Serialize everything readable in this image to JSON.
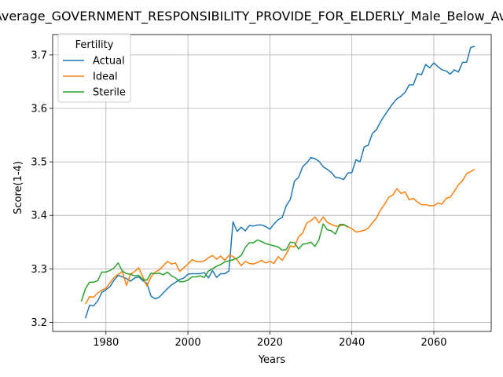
{
  "chart_data": {
    "type": "line",
    "title": "Average_GOVERNMENT_RESPONSIBILITY_PROVIDE_FOR_ELDERLY_Male_Below_Av",
    "xlabel": "Years",
    "ylabel": "Score(1-4)",
    "xlim": [
      1967,
      2074
    ],
    "ylim": [
      3.183,
      3.738
    ],
    "xticks": [
      1980,
      2000,
      2020,
      2040,
      2060
    ],
    "yticks": [
      3.2,
      3.3,
      3.4,
      3.5,
      3.6,
      3.7
    ],
    "grid": true,
    "legend": {
      "title": "Fertility",
      "placement": "top-left"
    },
    "series": [
      {
        "name": "Actual",
        "color": "#1f77b4",
        "x": [
          1975,
          1976,
          1977,
          1978,
          1979,
          1980,
          1981,
          1982,
          1983,
          1984,
          1985,
          1986,
          1987,
          1988,
          1989,
          1990,
          1991,
          1992,
          1993,
          1994,
          1995,
          1996,
          1997,
          1998,
          1999,
          2000,
          2001,
          2002,
          2003,
          2004,
          2005,
          2006,
          2007,
          2008,
          2009,
          2010,
          2011,
          2012,
          2013,
          2014,
          2015,
          2016,
          2017,
          2018,
          2019,
          2020,
          2021,
          2022,
          2023,
          2024,
          2025,
          2026,
          2027,
          2028,
          2029,
          2030,
          2031,
          2032,
          2033,
          2034,
          2035,
          2036,
          2037,
          2038,
          2039,
          2040,
          2041,
          2042,
          2043,
          2044,
          2045,
          2046,
          2047,
          2048,
          2049,
          2050,
          2051,
          2052,
          2053,
          2054,
          2055,
          2056,
          2057,
          2058,
          2059,
          2060,
          2061,
          2062,
          2063,
          2064,
          2065,
          2066,
          2067,
          2068,
          2069,
          2070
        ],
        "values": [
          3.208,
          3.232,
          3.231,
          3.24,
          3.256,
          3.261,
          3.267,
          3.279,
          3.288,
          3.285,
          3.282,
          3.277,
          3.283,
          3.285,
          3.278,
          3.273,
          3.249,
          3.244,
          3.247,
          3.255,
          3.263,
          3.27,
          3.275,
          3.28,
          3.283,
          3.29,
          3.291,
          3.291,
          3.291,
          3.293,
          3.283,
          3.297,
          3.284,
          3.291,
          3.291,
          3.296,
          3.388,
          3.37,
          3.378,
          3.371,
          3.381,
          3.38,
          3.382,
          3.382,
          3.379,
          3.374,
          3.384,
          3.392,
          3.396,
          3.418,
          3.43,
          3.464,
          3.471,
          3.491,
          3.498,
          3.508,
          3.506,
          3.501,
          3.491,
          3.486,
          3.48,
          3.471,
          3.47,
          3.467,
          3.479,
          3.48,
          3.504,
          3.5,
          3.528,
          3.531,
          3.553,
          3.56,
          3.575,
          3.587,
          3.598,
          3.609,
          3.618,
          3.623,
          3.63,
          3.644,
          3.644,
          3.665,
          3.663,
          3.682,
          3.676,
          3.685,
          3.678,
          3.672,
          3.67,
          3.664,
          3.672,
          3.668,
          3.686,
          3.686,
          3.714,
          3.716
        ]
      },
      {
        "name": "Ideal",
        "color": "#ff7f0e",
        "x": [
          1975,
          1976,
          1977,
          1978,
          1979,
          1980,
          1981,
          1982,
          1983,
          1984,
          1985,
          1986,
          1987,
          1988,
          1989,
          1990,
          1991,
          1992,
          1993,
          1994,
          1995,
          1996,
          1997,
          1998,
          1999,
          2000,
          2001,
          2002,
          2003,
          2004,
          2005,
          2006,
          2007,
          2008,
          2009,
          2010,
          2011,
          2012,
          2013,
          2014,
          2015,
          2016,
          2017,
          2018,
          2019,
          2020,
          2021,
          2022,
          2023,
          2024,
          2025,
          2026,
          2027,
          2028,
          2029,
          2030,
          2031,
          2032,
          2033,
          2034,
          2035,
          2036,
          2037,
          2038,
          2039,
          2040,
          2041,
          2042,
          2043,
          2044,
          2045,
          2046,
          2047,
          2048,
          2049,
          2050,
          2051,
          2052,
          2053,
          2054,
          2055,
          2056,
          2057,
          2058,
          2059,
          2060,
          2061,
          2062,
          2063,
          2064,
          2065,
          2066,
          2067,
          2068,
          2069,
          2070
        ],
        "values": [
          3.234,
          3.248,
          3.247,
          3.255,
          3.26,
          3.264,
          3.274,
          3.284,
          3.29,
          3.295,
          3.269,
          3.29,
          3.295,
          3.302,
          3.285,
          3.268,
          3.285,
          3.294,
          3.298,
          3.306,
          3.314,
          3.309,
          3.311,
          3.295,
          3.302,
          3.309,
          3.317,
          3.314,
          3.313,
          3.315,
          3.321,
          3.325,
          3.318,
          3.324,
          3.316,
          3.325,
          3.323,
          3.317,
          3.306,
          3.314,
          3.31,
          3.309,
          3.312,
          3.316,
          3.311,
          3.314,
          3.31,
          3.323,
          3.316,
          3.328,
          3.343,
          3.341,
          3.36,
          3.367,
          3.386,
          3.39,
          3.397,
          3.386,
          3.397,
          3.387,
          3.383,
          3.38,
          3.38,
          3.382,
          3.379,
          3.375,
          3.369,
          3.37,
          3.372,
          3.376,
          3.386,
          3.395,
          3.41,
          3.421,
          3.434,
          3.438,
          3.45,
          3.441,
          3.444,
          3.429,
          3.432,
          3.425,
          3.42,
          3.42,
          3.418,
          3.418,
          3.423,
          3.421,
          3.432,
          3.434,
          3.445,
          3.457,
          3.465,
          3.478,
          3.482,
          3.486
        ]
      },
      {
        "name": "Sterile",
        "color": "#2ca02c",
        "x": [
          1974,
          1975,
          1976,
          1977,
          1978,
          1979,
          1980,
          1981,
          1982,
          1983,
          1984,
          1985,
          1986,
          1987,
          1988,
          1989,
          1990,
          1991,
          1992,
          1993,
          1994,
          1995,
          1996,
          1997,
          1998,
          1999,
          2000,
          2001,
          2002,
          2003,
          2004,
          2005,
          2006,
          2007,
          2008,
          2009,
          2010,
          2011,
          2012,
          2013,
          2014,
          2015,
          2016,
          2017,
          2018,
          2019,
          2020,
          2021,
          2022,
          2023,
          2024,
          2025,
          2026,
          2027,
          2028,
          2029,
          2030,
          2031,
          2032,
          2033,
          2034,
          2035,
          2036,
          2037,
          2038,
          2039
        ],
        "values": [
          3.239,
          3.263,
          3.275,
          3.275,
          3.278,
          3.294,
          3.294,
          3.297,
          3.302,
          3.311,
          3.296,
          3.291,
          3.29,
          3.287,
          3.288,
          3.28,
          3.279,
          3.292,
          3.291,
          3.292,
          3.289,
          3.294,
          3.287,
          3.283,
          3.276,
          3.276,
          3.279,
          3.285,
          3.285,
          3.287,
          3.284,
          3.296,
          3.3,
          3.305,
          3.308,
          3.313,
          3.315,
          3.317,
          3.32,
          3.325,
          3.34,
          3.349,
          3.349,
          3.354,
          3.351,
          3.347,
          3.345,
          3.343,
          3.341,
          3.335,
          3.336,
          3.35,
          3.349,
          3.337,
          3.346,
          3.347,
          3.35,
          3.342,
          3.355,
          3.384,
          3.373,
          3.371,
          3.365,
          3.383,
          3.383,
          3.378
        ]
      }
    ]
  }
}
